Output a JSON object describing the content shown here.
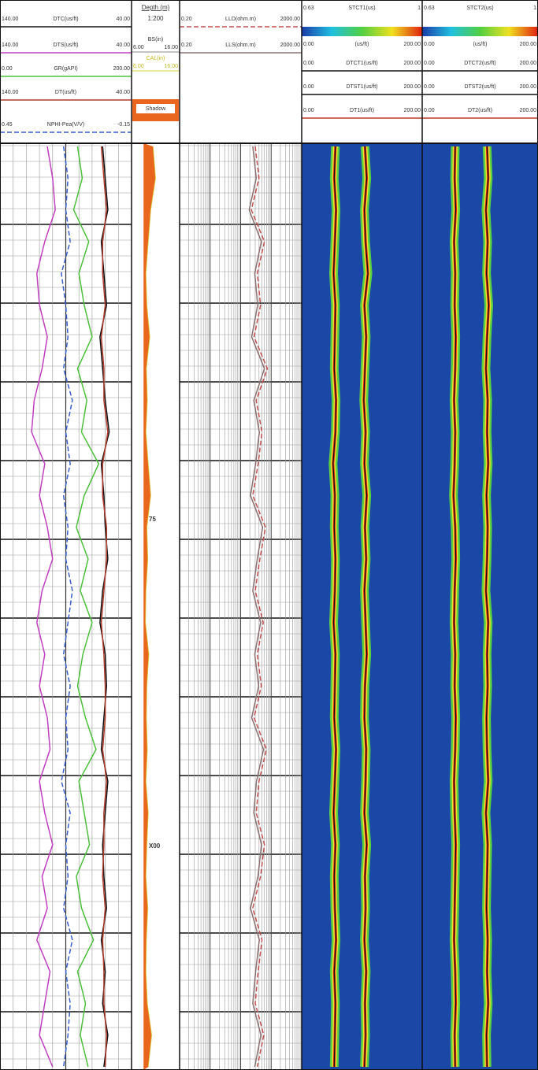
{
  "tracks": [
    {
      "kind": "linear",
      "curves": [
        {
          "name": "DTC(us/ft)",
          "left": {
            "value": 140,
            "label": "140.00"
          },
          "right": {
            "value": 40,
            "label": "40.00"
          },
          "color": "#111111",
          "dash": false,
          "values": [
            62,
            60,
            58,
            63,
            61,
            59,
            64,
            62,
            60,
            57,
            63,
            61,
            60,
            58,
            62,
            64,
            60,
            59,
            61,
            63,
            58,
            60,
            62,
            61,
            59,
            63,
            60,
            62,
            58,
            61
          ]
        },
        {
          "name": "DTS(us/ft)",
          "left": {
            "value": 140,
            "label": "140.00"
          },
          "right": {
            "value": 40,
            "label": "40.00"
          },
          "color": "#c040c0",
          "dash": false,
          "values": [
            104,
            100,
            98,
            106,
            112,
            110,
            104,
            108,
            114,
            116,
            106,
            110,
            104,
            100,
            108,
            112,
            106,
            110,
            104,
            102,
            110,
            106,
            100,
            108,
            104,
            112,
            102,
            106,
            110,
            100
          ]
        },
        {
          "name": "GR(gAPI)",
          "left": {
            "value": 0,
            "label": "0.00"
          },
          "right": {
            "value": 200,
            "label": "200.00"
          },
          "color": "#4cc03a",
          "dash": false,
          "values": [
            118,
            125,
            112,
            135,
            120,
            128,
            140,
            118,
            132,
            124,
            150,
            128,
            116,
            134,
            122,
            140,
            126,
            118,
            130,
            146,
            120,
            128,
            136,
            116,
            124,
            142,
            118,
            130,
            122,
            134
          ]
        },
        {
          "name": "DT(us/ft)",
          "left": {
            "value": 140,
            "label": "140.00"
          },
          "right": {
            "value": 40,
            "label": "40.00"
          },
          "color": "#b03a2a",
          "dash": false,
          "values": [
            63,
            61,
            59,
            62,
            62,
            60,
            63,
            61,
            61,
            58,
            62,
            62,
            59,
            59,
            61,
            63,
            61,
            60,
            60,
            62,
            59,
            61,
            61,
            62,
            60,
            62,
            61,
            61,
            59,
            60
          ]
        },
        {
          "name": "NPHI-Pea(V/V)",
          "left": {
            "value": 0.45,
            "label": "0.45"
          },
          "right": {
            "value": -0.15,
            "label": "-0.15"
          },
          "color": "#3a5fc8",
          "dash": true,
          "values": [
            0.16,
            0.14,
            0.15,
            0.13,
            0.17,
            0.15,
            0.14,
            0.16,
            0.12,
            0.15,
            0.13,
            0.16,
            0.14,
            0.15,
            0.12,
            0.14,
            0.16,
            0.13,
            0.15,
            0.14,
            0.17,
            0.13,
            0.15,
            0.14,
            0.16,
            0.12,
            0.15,
            0.13,
            0.14,
            0.16
          ]
        }
      ]
    },
    {
      "kind": "depth",
      "title": "Depth (m)",
      "scale": "1:200",
      "bs": {
        "name": "BS(in)",
        "left": {
          "value": 6,
          "label": "6.00"
        },
        "right": {
          "value": 16,
          "label": "16.00"
        },
        "value": 8.5
      },
      "cal": {
        "name": "CAL(in)",
        "left": {
          "value": 6,
          "label": "6.00"
        },
        "right": {
          "value": 16,
          "label": "16.00"
        },
        "color": "#d8d040",
        "values": [
          10.5,
          11,
          10,
          9.5,
          9,
          9.2,
          9.8,
          9.1,
          9.3,
          9,
          9.5,
          10,
          9.2,
          9.4,
          9,
          8.9,
          9.6,
          9.2,
          9.1,
          9.3,
          9,
          9.5,
          9.2,
          9,
          9.4,
          9.1,
          9,
          9.3,
          10.2,
          9.5
        ]
      },
      "shadow": {
        "label": "Shadow",
        "color": "#e8661e"
      },
      "depth_labels": [
        "75",
        "X00"
      ]
    },
    {
      "kind": "log",
      "curves": [
        {
          "name": "LLD(ohm.m)",
          "left": {
            "value": 0.2,
            "label": "0.20"
          },
          "right": {
            "value": 2000,
            "label": "2000.00"
          },
          "color": "#c05050",
          "dash": true,
          "values": [
            60,
            80,
            45,
            120,
            70,
            90,
            55,
            150,
            65,
            100,
            75,
            50,
            130,
            85,
            60,
            110,
            70,
            95,
            55,
            140,
            80,
            65,
            120,
            90,
            50,
            100,
            75,
            60,
            115,
            70
          ]
        },
        {
          "name": "LLS(ohm.m)",
          "left": {
            "value": 0.2,
            "label": "0.20"
          },
          "right": {
            "value": 2000,
            "label": "2000.00"
          },
          "color": "#8a7070",
          "dash": false,
          "values": [
            50,
            65,
            38,
            95,
            58,
            72,
            46,
            120,
            54,
            82,
            62,
            42,
            105,
            70,
            50,
            90,
            58,
            78,
            46,
            112,
            66,
            54,
            96,
            74,
            42,
            82,
            62,
            50,
            92,
            58
          ]
        }
      ]
    },
    {
      "kind": "image",
      "image": {
        "name": "STCT1(us)",
        "left": "0.63",
        "right": "1"
      },
      "units": {
        "name": "(us/ft)",
        "left": "0.00",
        "right": "200.00"
      },
      "curves": [
        {
          "name": "DTCT1(us/ft)",
          "left": {
            "value": 0,
            "label": "0.00"
          },
          "right": {
            "value": 200,
            "label": "200.00"
          },
          "color": "#111111",
          "dash": false,
          "values": [
            56,
            54,
            57,
            55,
            53,
            56,
            55,
            54,
            57,
            56,
            52,
            55,
            54,
            56,
            55,
            53,
            56,
            55,
            54,
            57,
            55,
            53,
            56,
            54,
            55,
            57,
            54,
            56,
            55,
            54
          ]
        },
        {
          "name": "DTST1(us/ft)",
          "left": {
            "value": 0,
            "label": "0.00"
          },
          "right": {
            "value": 200,
            "label": "200.00"
          },
          "color": "#111111",
          "dash": false,
          "values": [
            105,
            108,
            104,
            106,
            110,
            104,
            107,
            105,
            103,
            106,
            104,
            108,
            105,
            107,
            104,
            106,
            108,
            105,
            104,
            107,
            106,
            104,
            108,
            105,
            106,
            104,
            107,
            105,
            106,
            104
          ]
        },
        {
          "name": "DT1(us/ft)",
          "left": {
            "value": 0,
            "label": "0.00"
          },
          "right": {
            "value": 200,
            "label": "200.00"
          },
          "color": "#c0392b",
          "dash": false
        }
      ]
    },
    {
      "kind": "image",
      "image": {
        "name": "STCT2(us)",
        "left": "0.63",
        "right": "1"
      },
      "units": {
        "name": "(us/ft)",
        "left": "0.00",
        "right": "200.00"
      },
      "curves": [
        {
          "name": "DTCT2(us/ft)",
          "left": {
            "value": 0,
            "label": "0.00"
          },
          "right": {
            "value": 200,
            "label": "200.00"
          },
          "color": "#111111",
          "dash": false,
          "values": [
            57,
            56,
            58,
            55,
            57,
            56,
            58,
            57,
            55,
            57,
            56,
            54,
            57,
            58,
            56,
            55,
            57,
            56,
            58,
            57,
            55,
            56,
            58,
            57,
            56,
            55,
            57,
            58,
            56,
            57
          ]
        },
        {
          "name": "DTST2(us/ft)",
          "left": {
            "value": 0,
            "label": "0.00"
          },
          "right": {
            "value": 200,
            "label": "200.00"
          },
          "color": "#111111",
          "dash": false,
          "values": [
            112,
            114,
            110,
            113,
            111,
            115,
            112,
            110,
            113,
            112,
            114,
            111,
            113,
            112,
            110,
            114,
            112,
            113,
            111,
            112,
            114,
            110,
            113,
            112,
            111,
            113,
            112,
            114,
            111,
            112
          ]
        },
        {
          "name": "DT2(us/ft)",
          "left": {
            "value": 0,
            "label": "0.00"
          },
          "right": {
            "value": 200,
            "label": "200.00"
          },
          "color": "#c0392b",
          "dash": false
        }
      ]
    }
  ]
}
